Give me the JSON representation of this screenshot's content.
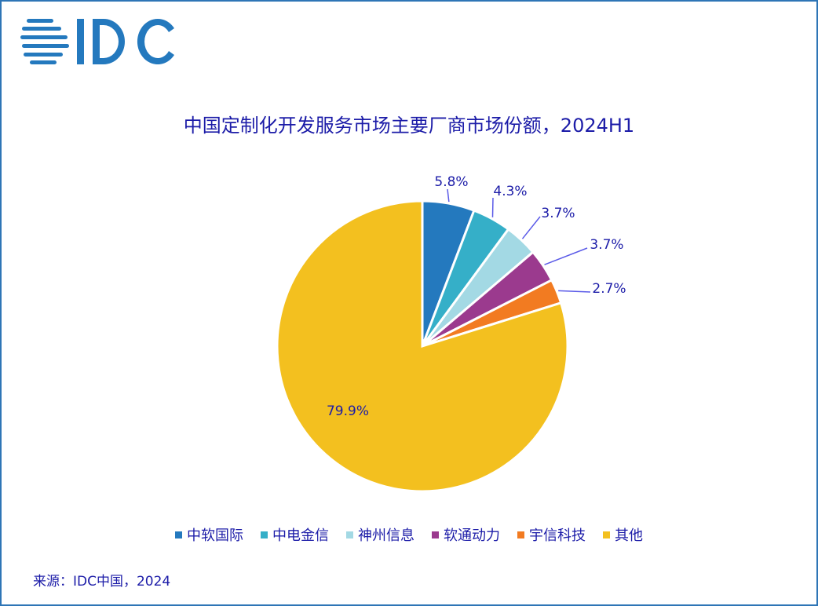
{
  "logo_text": "IDC",
  "chart_data": {
    "type": "pie",
    "title": "中国定制化开发服务市场主要厂商市场份额，2024H1",
    "categories": [
      "中软国际",
      "中电金信",
      "神州信息",
      "软通动力",
      "宇信科技",
      "其他"
    ],
    "values": [
      5.8,
      4.3,
      3.7,
      3.7,
      2.7,
      79.9
    ],
    "labels": [
      "5.8%",
      "4.3%",
      "3.7%",
      "3.7%",
      "2.7%",
      "79.9%"
    ],
    "colors": [
      "#2479be",
      "#35afc8",
      "#a3d9e4",
      "#9b3a8e",
      "#f27b21",
      "#f3c01f"
    ],
    "legend_position": "bottom",
    "start_angle": "top",
    "direction": "clockwise"
  },
  "source": "来源：IDC中国，2024"
}
